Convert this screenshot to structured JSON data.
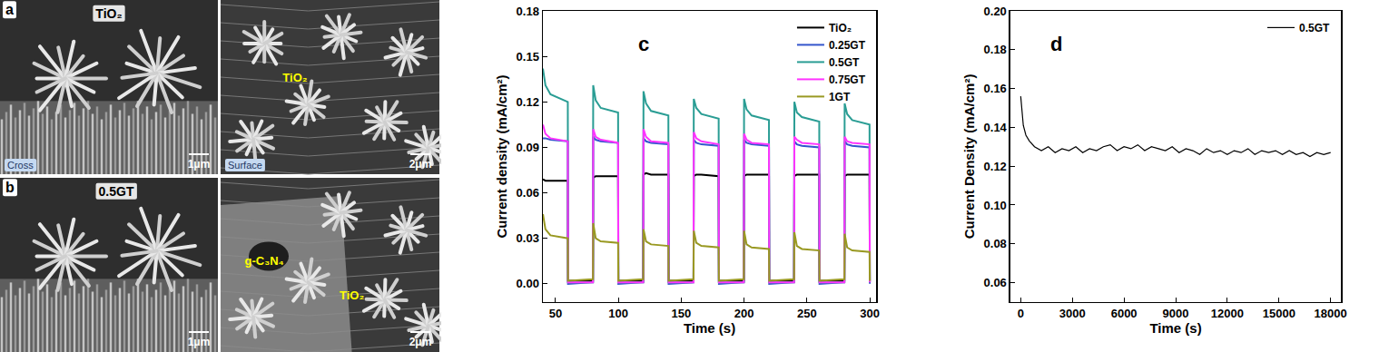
{
  "images": [
    {
      "label": "a",
      "title": "TiO₂",
      "panels": [
        {
          "caption": "Cross",
          "scale_bar": "1μm"
        },
        {
          "caption": "Surface",
          "scale_bar": "2μm",
          "labels": [
            "TiO₂"
          ]
        }
      ]
    },
    {
      "label": "b",
      "title": "0.5GT",
      "panels": [
        {
          "scale_bar": "1μm"
        },
        {
          "scale_bar": "2μm",
          "labels": [
            "g-C₃N₄",
            "TiO₂"
          ]
        }
      ]
    }
  ],
  "chart_data": [
    {
      "type": "line",
      "annotations": [
        "c"
      ],
      "xlabel": "Time (s)",
      "ylabel": "Current density (mA/cm²)",
      "xlim": [
        40,
        305
      ],
      "ylim": [
        -0.012,
        0.18
      ],
      "xticks": [
        50,
        100,
        150,
        200,
        250,
        300
      ],
      "yticks": [
        {
          "value": 0,
          "label": "0.00"
        },
        0.03,
        0.06,
        0.09,
        0.12,
        0.15,
        0.18
      ],
      "grid": false,
      "legend": "upper right",
      "x": [
        40,
        42,
        46,
        59.8,
        60,
        79.8,
        80,
        82,
        86,
        99.8,
        100,
        119.8,
        120,
        122,
        126,
        139.8,
        140,
        159.8,
        160,
        162,
        166,
        179.8,
        180,
        199.8,
        200,
        202,
        206,
        219.8,
        220,
        239.8,
        240,
        242,
        246,
        259.8,
        260,
        279.8,
        280,
        282,
        286,
        299.8,
        300
      ],
      "series": [
        {
          "name": "TiO₂",
          "color": "#000000",
          "values": [
            0.069,
            0.068,
            0.068,
            0.068,
            0.002,
            0.002,
            0.07,
            0.071,
            0.071,
            0.071,
            0.002,
            0.002,
            0.072,
            0.073,
            0.072,
            0.072,
            0.002,
            0.002,
            0.071,
            0.072,
            0.072,
            0.071,
            0.002,
            0.002,
            0.071,
            0.072,
            0.072,
            0.072,
            0.002,
            0.002,
            0.071,
            0.072,
            0.072,
            0.072,
            0.002,
            0.002,
            0.071,
            0.072,
            0.072,
            0.072,
            0.002
          ]
        },
        {
          "name": "0.25GT",
          "color": "#3355cc",
          "values": [
            0.096,
            0.096,
            0.095,
            0.094,
            0.0,
            0.001,
            0.097,
            0.095,
            0.094,
            0.093,
            0.0,
            0.001,
            0.096,
            0.094,
            0.093,
            0.092,
            0.0,
            0.001,
            0.095,
            0.093,
            0.092,
            0.091,
            0.0,
            0.001,
            0.095,
            0.093,
            0.092,
            0.091,
            0.0,
            0.001,
            0.094,
            0.092,
            0.091,
            0.09,
            0.0,
            0.001,
            0.094,
            0.092,
            0.091,
            0.09,
            0.0
          ]
        },
        {
          "name": "0.5GT",
          "color": "#2a9d94",
          "values": [
            0.142,
            0.131,
            0.125,
            0.12,
            0.001,
            0.001,
            0.131,
            0.121,
            0.116,
            0.113,
            0.001,
            0.001,
            0.127,
            0.119,
            0.114,
            0.111,
            0.001,
            0.001,
            0.122,
            0.116,
            0.112,
            0.109,
            0.001,
            0.001,
            0.122,
            0.115,
            0.111,
            0.108,
            0.001,
            0.001,
            0.12,
            0.113,
            0.11,
            0.107,
            0.001,
            0.001,
            0.119,
            0.112,
            0.108,
            0.105,
            0.001
          ]
        },
        {
          "name": "0.75GT",
          "color": "#ff33ff",
          "values": [
            0.105,
            0.099,
            0.096,
            0.094,
            0.001,
            0.001,
            0.102,
            0.097,
            0.095,
            0.093,
            0.001,
            0.001,
            0.102,
            0.097,
            0.094,
            0.093,
            0.001,
            0.001,
            0.1,
            0.096,
            0.094,
            0.092,
            0.001,
            0.001,
            0.099,
            0.095,
            0.093,
            0.092,
            0.001,
            0.001,
            0.097,
            0.095,
            0.093,
            0.092,
            0.001,
            0.001,
            0.097,
            0.094,
            0.093,
            0.092,
            0.001
          ]
        },
        {
          "name": "1GT",
          "color": "#999922",
          "values": [
            0.046,
            0.036,
            0.032,
            0.03,
            0.002,
            0.003,
            0.04,
            0.03,
            0.028,
            0.027,
            0.002,
            0.003,
            0.036,
            0.028,
            0.026,
            0.025,
            0.002,
            0.003,
            0.035,
            0.027,
            0.025,
            0.024,
            0.002,
            0.003,
            0.035,
            0.026,
            0.024,
            0.023,
            0.002,
            0.003,
            0.034,
            0.025,
            0.023,
            0.022,
            0.002,
            0.003,
            0.033,
            0.024,
            0.022,
            0.021,
            0.002
          ]
        }
      ]
    },
    {
      "type": "line",
      "annotations": [
        "d"
      ],
      "xlabel": "Time (s)",
      "ylabel": "Current Density (mA/cm²)",
      "xlim": [
        -600,
        18600
      ],
      "ylim": [
        0.05,
        0.2
      ],
      "xticks": [
        0,
        3000,
        6000,
        9000,
        12000,
        15000,
        18000
      ],
      "yticks": [
        0.06,
        0.08,
        {
          "value": 0.1,
          "label": "0.10"
        },
        0.12,
        0.14,
        0.16,
        0.18,
        {
          "value": 0.2,
          "label": "0.20"
        }
      ],
      "grid": false,
      "legend": "upper right",
      "x": [
        0,
        60,
        150,
        300,
        500,
        800,
        1200,
        1600,
        2000,
        2400,
        2800,
        3200,
        3600,
        4000,
        4400,
        4800,
        5200,
        5600,
        6000,
        6400,
        6800,
        7200,
        7600,
        8000,
        8400,
        8800,
        9200,
        9600,
        10000,
        10400,
        10800,
        11200,
        11600,
        12000,
        12400,
        12800,
        13200,
        13600,
        14000,
        14400,
        14800,
        15200,
        15600,
        16000,
        16400,
        16800,
        17200,
        17600,
        18000
      ],
      "series": [
        {
          "name": "0.5GT",
          "color": "#000000",
          "values": [
            0.156,
            0.148,
            0.141,
            0.136,
            0.133,
            0.13,
            0.128,
            0.13,
            0.127,
            0.129,
            0.128,
            0.13,
            0.127,
            0.129,
            0.128,
            0.13,
            0.131,
            0.128,
            0.13,
            0.129,
            0.131,
            0.128,
            0.13,
            0.129,
            0.128,
            0.13,
            0.127,
            0.129,
            0.128,
            0.126,
            0.129,
            0.127,
            0.128,
            0.126,
            0.128,
            0.127,
            0.129,
            0.126,
            0.128,
            0.127,
            0.128,
            0.126,
            0.128,
            0.126,
            0.127,
            0.125,
            0.127,
            0.126,
            0.127
          ]
        }
      ]
    }
  ]
}
